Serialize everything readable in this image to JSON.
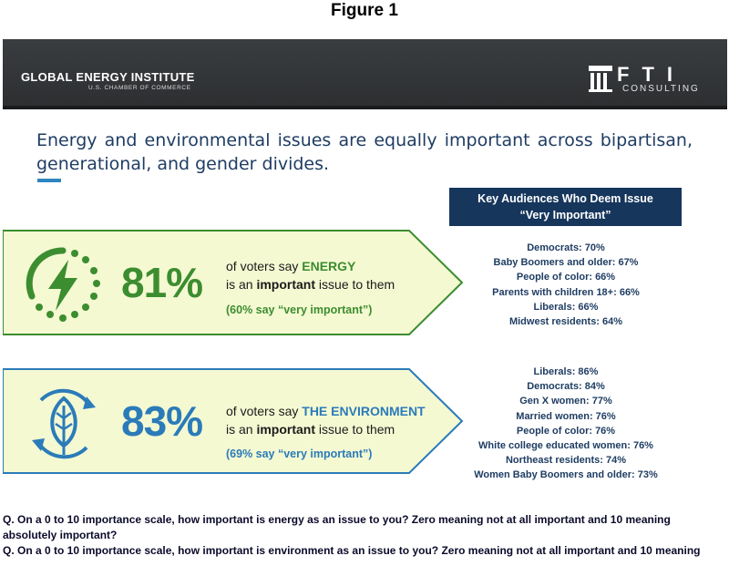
{
  "figure_title": "Figure 1",
  "header": {
    "org_left": "GLOBAL ENERGY INSTITUTE",
    "org_left_sub": "U.S. CHAMBER OF COMMERCE",
    "org_right": "FTI",
    "org_right_sub": "CONSULTING"
  },
  "headline": "Energy and environmental issues are equally important across bipartisan, generational, and gender divides.",
  "key_box": {
    "line1": "Key Audiences Who Deem Issue",
    "line2": "“Very Important”"
  },
  "energy": {
    "percent": "81%",
    "line1_prefix": "of voters say ",
    "line1_topic": "ENERGY",
    "line2_prefix": "is an ",
    "line2_bold": "important",
    "line2_suffix": " issue to them",
    "sub": "(60% say “very important”)",
    "icon": "lightning-bolt-icon",
    "color": "#3c8d2f",
    "audiences": [
      "Democrats: 70%",
      "Baby Boomers and older: 67%",
      "People of color: 66%",
      "Parents with children 18+: 66%",
      "Liberals: 66%",
      "Midwest residents: 64%"
    ]
  },
  "environment": {
    "percent": "83%",
    "line1_prefix": "of voters say ",
    "line1_topic": "THE ENVIRONMENT",
    "line2_prefix": "is an ",
    "line2_bold": "important",
    "line2_suffix": " issue to them",
    "sub": "(69% say “very important”)",
    "icon": "leaf-cycle-icon",
    "color": "#2b7bb9",
    "audiences": [
      "Liberals: 86%",
      "Democrats: 84%",
      "Gen X women: 77%",
      "Married women: 76%",
      "People of color: 76%",
      "White college educated women: 76%",
      "Northeast residents: 74%",
      "Women Baby Boomers and older: 73%"
    ]
  },
  "questions": {
    "q1": "Q. On a 0 to 10 importance scale, how important is energy as an issue to you? Zero meaning not at all important and 10 meaning absolutely important?",
    "q2": "Q. On a 0 to 10 importance scale, how important is environment as an issue to you? Zero meaning not at all important and 10 meaning"
  },
  "colors": {
    "banner": "#2f3133",
    "navy": "#16365c",
    "arrow_fill": "#f4f9d2",
    "energy_green": "#3c8d2f",
    "env_blue": "#2b7bb9"
  }
}
